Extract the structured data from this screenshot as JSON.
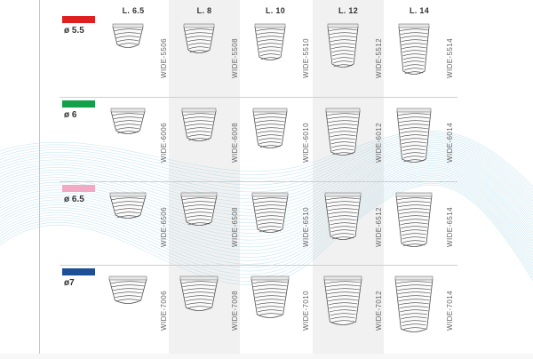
{
  "columns": [
    "L. 6.5",
    "L. 8",
    "L. 10",
    "L. 12",
    "L. 14"
  ],
  "rows": [
    {
      "diameter": "ø 5.5",
      "color": "#e02020",
      "codes": [
        "WIDE-5506",
        "WIDE-5508",
        "WIDE-5510",
        "WIDE-5512",
        "WIDE-5514"
      ]
    },
    {
      "diameter": "ø 6",
      "color": "#12a04a",
      "codes": [
        "WIDE-6006",
        "WIDE-6008",
        "WIDE-6010",
        "WIDE-6012",
        "WIDE-6014"
      ]
    },
    {
      "diameter": "ø 6.5",
      "color": "#f2a9c4",
      "codes": [
        "WIDE-6506",
        "WIDE-6508",
        "WIDE-6510",
        "WIDE-6512",
        "WIDE-6514"
      ]
    },
    {
      "diameter": "ø7",
      "color": "#1c4f95",
      "codes": [
        "WIDE-7006",
        "WIDE-7008",
        "WIDE-7010",
        "WIDE-7012",
        "WIDE-7014"
      ]
    }
  ],
  "icons": {
    "implant": "dental-implant-icon"
  },
  "accent": "#9fd3e3"
}
